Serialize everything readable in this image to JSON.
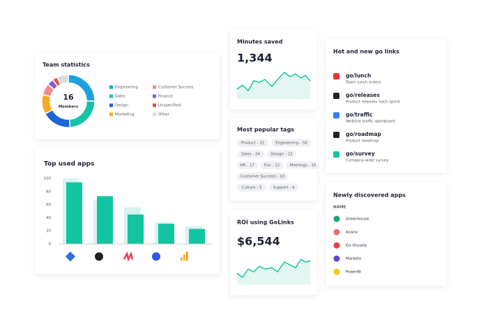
{
  "team_statistics": {
    "title": "Team statistics",
    "center_value": "16",
    "center_label": "Members",
    "chart_data": {
      "type": "donut",
      "categories": [
        "Engineering",
        "Sales",
        "Design",
        "Marketing",
        "Customer Success",
        "Finance",
        "Unspecified",
        "Other"
      ],
      "colors": [
        "#1ba3dc",
        "#14c4a4",
        "#1f63d8",
        "#f7a823",
        "#f08b8f",
        "#7b5fd8",
        "#ea4c3c",
        "#dcdcdc"
      ],
      "values": [
        25,
        24,
        18,
        12,
        7,
        4,
        3,
        7
      ]
    }
  },
  "top_used_apps": {
    "title": "Top used apps",
    "chart_data": {
      "type": "bar",
      "series": [
        {
          "color": "#d6f4ee",
          "values": [
            100,
            67,
            56,
            33,
            27
          ]
        },
        {
          "color": "#13c4a3",
          "values": [
            94,
            73,
            45,
            31,
            23
          ]
        }
      ],
      "ylim": [
        0,
        100
      ],
      "yticks": [
        0,
        20,
        40,
        60,
        80,
        100
      ]
    }
  },
  "minutes_saved": {
    "title": "Minutes saved",
    "value": "1,344"
  },
  "popular_tags": {
    "title": "Most popular tags",
    "tags": [
      "Product - 32",
      "Engineering - 50",
      "Sales - 24",
      "Design - 22",
      "HR - 17",
      "Fun - 12",
      "Meetings - 10",
      "Customer Success - 10",
      "Culture - 5",
      "Support - 4"
    ]
  },
  "roi": {
    "title": "ROI using GoLinks",
    "value": "$6,544"
  },
  "go_links": {
    "title": "Hot and new go links",
    "items": [
      {
        "name": "go/lunch",
        "description": "Team lunch orders"
      },
      {
        "name": "go/releases",
        "description": "Product releases each sprint"
      },
      {
        "name": "go/traffic",
        "description": "Website traffic dashboard"
      },
      {
        "name": "go/roadmap",
        "description": "Product roadmap"
      },
      {
        "name": "go/survey",
        "description": "Company-wide survey"
      }
    ]
  },
  "new_apps": {
    "title": "Newly discovered apps",
    "column": "NAME",
    "items": [
      "Greenhouse",
      "Asana",
      "Go Visually",
      "Marketo",
      "PowerBI"
    ]
  }
}
